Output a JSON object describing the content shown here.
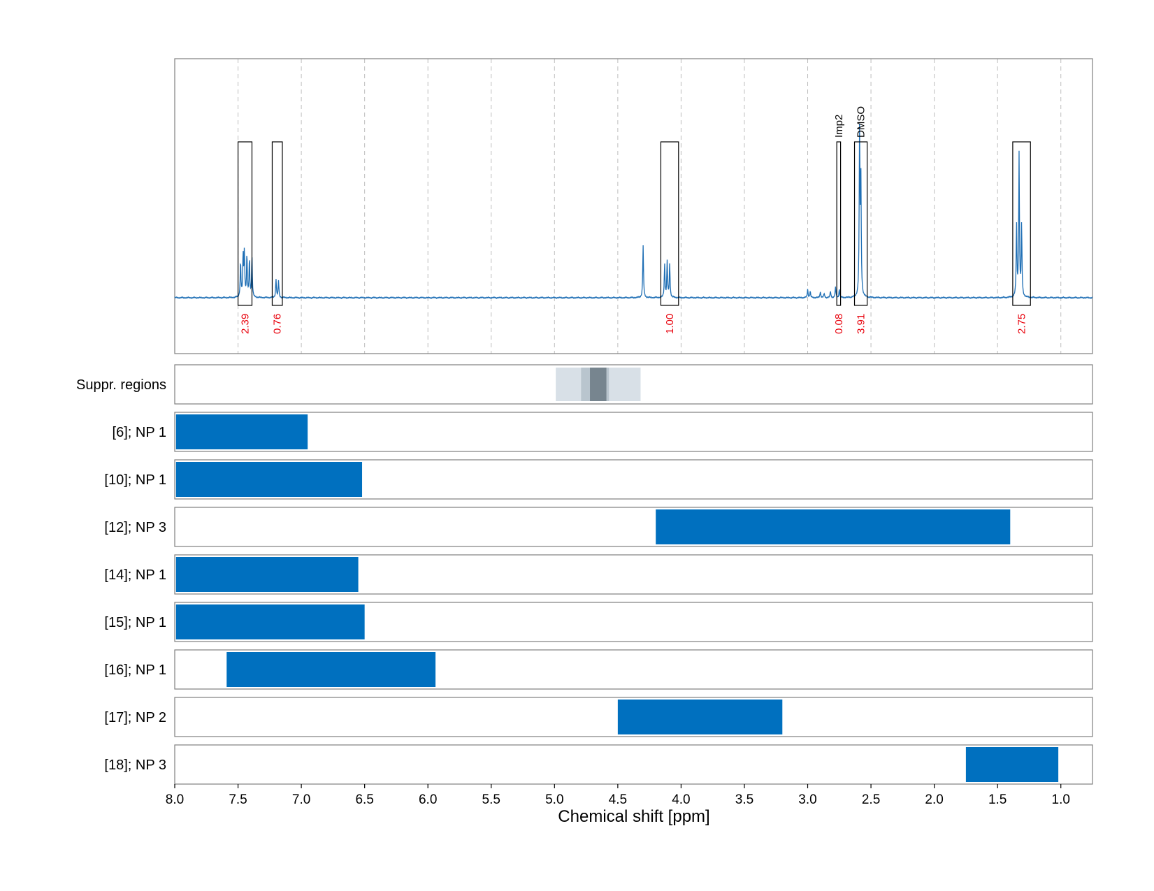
{
  "chart_data": {
    "type": "line",
    "xlabel": "Chemical shift [ppm]",
    "xlim": [
      8.0,
      0.75
    ],
    "x_ticks": [
      "8.0",
      "7.5",
      "7.0",
      "6.5",
      "6.0",
      "5.5",
      "5.0",
      "4.5",
      "4.0",
      "3.5",
      "3.0",
      "2.5",
      "2.0",
      "1.5",
      "1.0"
    ],
    "grid": "vertical dashed",
    "line_color": "#1f6fb5",
    "spectrum_peaks": [
      {
        "x": 7.48,
        "height": 0.17
      },
      {
        "x": 7.46,
        "height": 0.2
      },
      {
        "x": 7.45,
        "height": 0.21
      },
      {
        "x": 7.43,
        "height": 0.2
      },
      {
        "x": 7.41,
        "height": 0.18
      },
      {
        "x": 7.39,
        "height": 0.19
      },
      {
        "x": 7.2,
        "height": 0.09
      },
      {
        "x": 7.18,
        "height": 0.08
      },
      {
        "x": 4.3,
        "height": 0.25
      },
      {
        "x": 4.13,
        "height": 0.16
      },
      {
        "x": 4.11,
        "height": 0.17
      },
      {
        "x": 4.09,
        "height": 0.16
      },
      {
        "x": 3.0,
        "height": 0.04
      },
      {
        "x": 2.98,
        "height": 0.03
      },
      {
        "x": 2.9,
        "height": 0.03
      },
      {
        "x": 2.87,
        "height": 0.02
      },
      {
        "x": 2.82,
        "height": 0.03
      },
      {
        "x": 2.78,
        "height": 0.05
      },
      {
        "x": 2.75,
        "height": 0.04
      },
      {
        "x": 2.59,
        "height": 0.78
      },
      {
        "x": 2.58,
        "height": 0.57
      },
      {
        "x": 1.35,
        "height": 0.34
      },
      {
        "x": 1.33,
        "height": 0.68
      },
      {
        "x": 1.31,
        "height": 0.34
      }
    ],
    "integration_regions": [
      {
        "from": 7.5,
        "to": 7.39,
        "value": "2.39",
        "tag": ""
      },
      {
        "from": 7.23,
        "to": 7.15,
        "value": "0.76",
        "tag": ""
      },
      {
        "from": 4.16,
        "to": 4.02,
        "value": "1.00",
        "tag": ""
      },
      {
        "from": 2.77,
        "to": 2.74,
        "value": "0.08",
        "tag": "Imp2"
      },
      {
        "from": 2.63,
        "to": 2.53,
        "value": "3.91",
        "tag": "DMSO"
      },
      {
        "from": 1.38,
        "to": 1.24,
        "value": "2.75",
        "tag": ""
      }
    ],
    "suppression_regions": [
      {
        "from": 4.99,
        "to": 4.32,
        "level": "light"
      },
      {
        "from": 4.79,
        "to": 4.57,
        "level": "medium"
      },
      {
        "from": 4.72,
        "to": 4.59,
        "level": "dark"
      }
    ],
    "suppression_colors": {
      "light": "#d8e0e7",
      "medium": "#b9c5ce",
      "dark": "#77858f"
    },
    "range_rows": [
      {
        "label": "Suppr. regions",
        "ranges": []
      },
      {
        "label": "[6]; NP 1",
        "ranges": [
          [
            7.99,
            6.95
          ]
        ]
      },
      {
        "label": "[10]; NP 1",
        "ranges": [
          [
            7.99,
            6.52
          ]
        ]
      },
      {
        "label": "[12]; NP 3",
        "ranges": [
          [
            4.2,
            1.4
          ]
        ]
      },
      {
        "label": "[14]; NP 1",
        "ranges": [
          [
            7.99,
            6.55
          ]
        ]
      },
      {
        "label": "[15]; NP 1",
        "ranges": [
          [
            7.99,
            6.5
          ]
        ]
      },
      {
        "label": "[16]; NP 1",
        "ranges": [
          [
            7.59,
            5.94
          ]
        ]
      },
      {
        "label": "[17]; NP 2",
        "ranges": [
          [
            4.5,
            3.2
          ]
        ]
      },
      {
        "label": "[18]; NP 3",
        "ranges": [
          [
            1.75,
            1.02
          ]
        ]
      }
    ],
    "bar_color": "#0070bf",
    "integral_label_color": "#e8000b"
  }
}
